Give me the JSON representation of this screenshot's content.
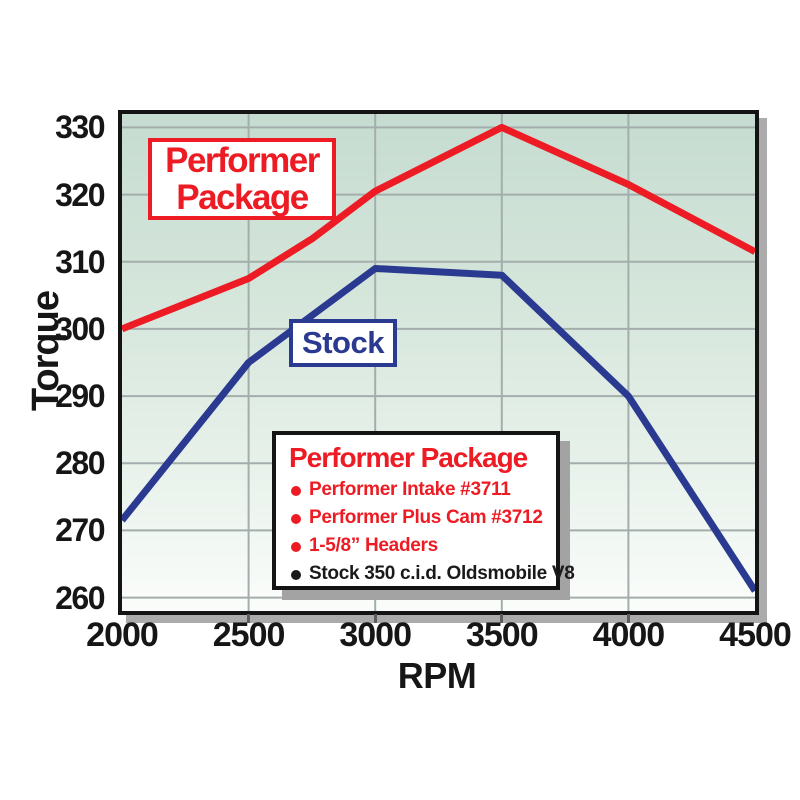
{
  "chart_data": {
    "type": "line",
    "title": "",
    "xlabel": "RPM",
    "ylabel": "Torque",
    "x_ticks": [
      2000,
      2500,
      3000,
      3500,
      4000,
      4500
    ],
    "y_ticks": [
      260,
      270,
      280,
      290,
      300,
      310,
      320,
      330
    ],
    "xlim": [
      2000,
      4500
    ],
    "ylim": [
      258,
      332
    ],
    "grid": true,
    "series": [
      {
        "name": "Performer Package",
        "color": "#ed1c24",
        "points": [
          [
            2000,
            300
          ],
          [
            2500,
            307.5
          ],
          [
            2750,
            313.4
          ],
          [
            3000,
            320.5
          ],
          [
            3500,
            330
          ],
          [
            4000,
            321.5
          ],
          [
            4500,
            311.5
          ]
        ]
      },
      {
        "name": "Stock",
        "color": "#2b3a91",
        "points": [
          [
            2000,
            271.5
          ],
          [
            2500,
            295
          ],
          [
            2750,
            302
          ],
          [
            3000,
            309
          ],
          [
            3500,
            308
          ],
          [
            4000,
            290
          ],
          [
            4500,
            261
          ]
        ]
      }
    ]
  },
  "labels": {
    "performer_box": {
      "line1": "Performer",
      "line2": "Package"
    },
    "stock_box": "Stock"
  },
  "legend": {
    "title": "Performer Package",
    "items": [
      {
        "text": "Performer Intake #3711",
        "color": "#ed1c24"
      },
      {
        "text": "Performer Plus Cam #3712",
        "color": "#ed1c24"
      },
      {
        "text": "1-5/8” Headers",
        "color": "#ed1c24"
      },
      {
        "text": "Stock 350 c.i.d. Oldsmobile V8",
        "color": "#1a1a1a"
      }
    ]
  },
  "colors": {
    "performer_red": "#ed1c24",
    "stock_blue": "#2b3a91",
    "gridline": "#a3aeac",
    "plot_border": "#141414",
    "plot_bg_top": "#c6dcd1",
    "plot_bg_bottom": "#fbfdfb",
    "shadow": "#ababab"
  }
}
